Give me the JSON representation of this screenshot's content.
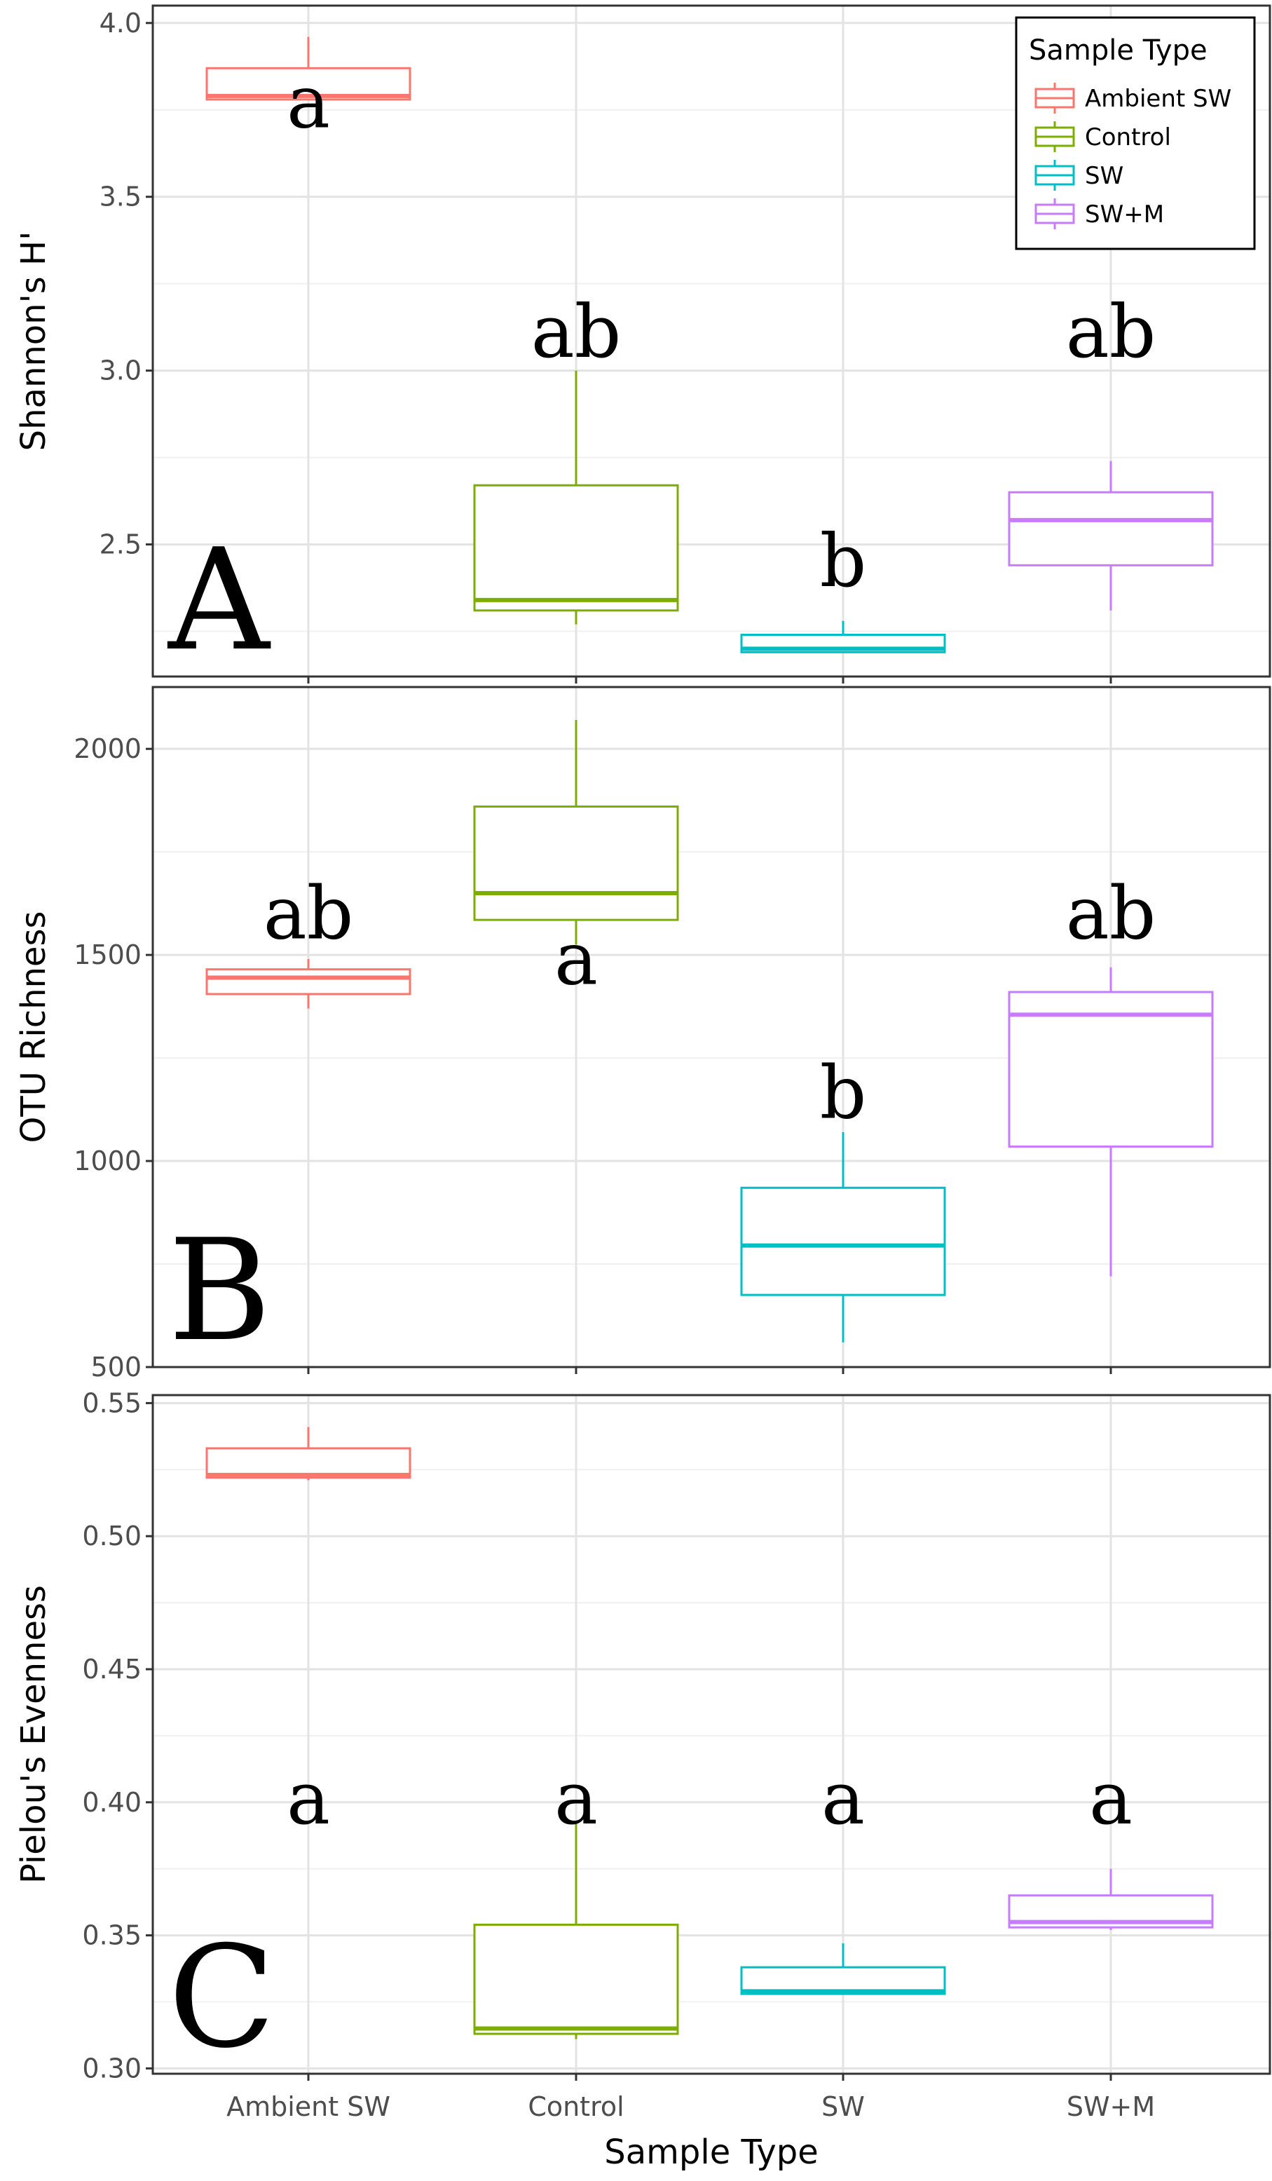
{
  "chart_data": {
    "type": "boxplot",
    "categories": [
      "Ambient SW",
      "Control",
      "SW",
      "SW+M"
    ],
    "xlabel": "Sample Type",
    "grid": true,
    "legend": {
      "title": "Sample Type",
      "placement": "top-right",
      "entries": [
        {
          "label": "Ambient SW",
          "color": "#F8766D"
        },
        {
          "label": "Control",
          "color": "#7CAE00"
        },
        {
          "label": "SW",
          "color": "#00BFC4"
        },
        {
          "label": "SW+M",
          "color": "#C77CFF"
        }
      ]
    },
    "panels": [
      {
        "panel_label": "A",
        "ylabel": "Shannon's H'",
        "ylim": [
          2.12,
          4.05
        ],
        "yticks": [
          2.5,
          3.0,
          3.5,
          4.0
        ],
        "ytick_labels": [
          "2.5",
          "3.0",
          "3.5",
          "4.0"
        ],
        "boxes": [
          {
            "category": "Ambient SW",
            "min": 3.78,
            "q1": 3.78,
            "median": 3.79,
            "q3": 3.87,
            "max": 3.96,
            "letter": "a"
          },
          {
            "category": "Control",
            "min": 2.27,
            "q1": 2.31,
            "median": 2.34,
            "q3": 2.67,
            "max": 3.0,
            "letter": "ab"
          },
          {
            "category": "SW",
            "min": 2.19,
            "q1": 2.19,
            "median": 2.2,
            "q3": 2.24,
            "max": 2.28,
            "letter": "b"
          },
          {
            "category": "SW+M",
            "min": 2.31,
            "q1": 2.44,
            "median": 2.57,
            "q3": 2.65,
            "max": 2.74,
            "letter": "ab"
          }
        ]
      },
      {
        "panel_label": "B",
        "ylabel": "OTU Richness",
        "ylim": [
          500,
          2150
        ],
        "yticks": [
          500,
          1000,
          1500,
          2000
        ],
        "ytick_labels": [
          "500",
          "1000",
          "1500",
          "2000"
        ],
        "boxes": [
          {
            "category": "Ambient SW",
            "min": 1370,
            "q1": 1405,
            "median": 1445,
            "q3": 1465,
            "max": 1490,
            "letter": "ab"
          },
          {
            "category": "Control",
            "min": 1525,
            "q1": 1585,
            "median": 1650,
            "q3": 1860,
            "max": 2070,
            "letter": "a"
          },
          {
            "category": "SW",
            "min": 560,
            "q1": 675,
            "median": 795,
            "q3": 935,
            "max": 1070,
            "letter": "b"
          },
          {
            "category": "SW+M",
            "min": 720,
            "q1": 1035,
            "median": 1355,
            "q3": 1410,
            "max": 1470,
            "letter": "ab"
          }
        ]
      },
      {
        "panel_label": "C",
        "ylabel": "Pielou's Evenness",
        "ylim": [
          0.298,
          0.553
        ],
        "yticks": [
          0.3,
          0.35,
          0.4,
          0.45,
          0.5,
          0.55
        ],
        "ytick_labels": [
          "0.30",
          "0.35",
          "0.40",
          "0.45",
          "0.50",
          "0.55"
        ],
        "boxes": [
          {
            "category": "Ambient SW",
            "min": 0.521,
            "q1": 0.522,
            "median": 0.523,
            "q3": 0.533,
            "max": 0.541,
            "letter": "a"
          },
          {
            "category": "Control",
            "min": 0.311,
            "q1": 0.313,
            "median": 0.315,
            "q3": 0.354,
            "max": 0.392,
            "letter": "a"
          },
          {
            "category": "SW",
            "min": 0.328,
            "q1": 0.328,
            "median": 0.329,
            "q3": 0.338,
            "max": 0.347,
            "letter": "a"
          },
          {
            "category": "SW+M",
            "min": 0.352,
            "q1": 0.353,
            "median": 0.355,
            "q3": 0.365,
            "max": 0.375,
            "letter": "a"
          }
        ]
      }
    ]
  }
}
